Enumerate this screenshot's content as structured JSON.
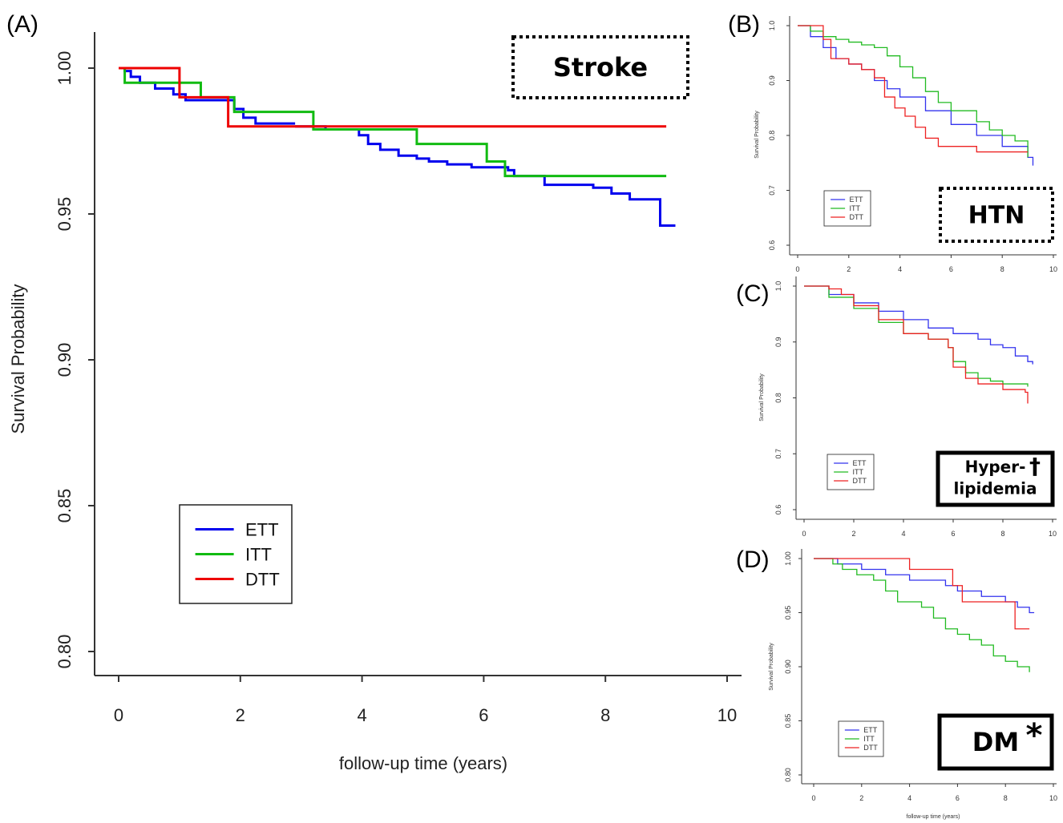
{
  "chart_data": [
    {
      "id": "A",
      "type": "line",
      "panel_label": "(A)",
      "tag": "Stroke",
      "tag_style": "dotted",
      "tag_marker": "",
      "xlabel": "follow-up time (years)",
      "ylabel": "Survival Probability",
      "xlim": [
        0,
        10
      ],
      "ylim": [
        0.8,
        1.0
      ],
      "xticks": [
        "0",
        "2",
        "4",
        "6",
        "8",
        "10"
      ],
      "yticks": [
        "0.80",
        "0.85",
        "0.90",
        "0.95",
        "1.00"
      ],
      "legend_position": "bottom-left",
      "series": [
        {
          "name": "ETT",
          "color": "#0000ee",
          "x": [
            0,
            0.1,
            0.2,
            0.35,
            0.6,
            0.9,
            1.1,
            1.5,
            1.9,
            2.05,
            2.25,
            2.9
          ],
          "y": [
            1.0,
            0.999,
            0.997,
            0.995,
            0.993,
            0.991,
            0.989,
            0.989,
            0.986,
            0.983,
            0.981,
            0.981
          ]
        },
        {
          "name": "ETT",
          "color": "#0000ee",
          "x": [
            2.9,
            3.4,
            3.95,
            4.1,
            4.3,
            4.6,
            4.9,
            5.1,
            5.4,
            5.8,
            6.4,
            6.5,
            7.0,
            7.8,
            8.1,
            8.4,
            8.9,
            9.15
          ],
          "y": [
            0.98,
            0.979,
            0.977,
            0.974,
            0.972,
            0.97,
            0.969,
            0.968,
            0.967,
            0.966,
            0.965,
            0.963,
            0.96,
            0.959,
            0.957,
            0.955,
            0.946,
            0.946
          ]
        },
        {
          "name": "ITT",
          "color": "#11bb11",
          "x": [
            0,
            0.1,
            0.7,
            1.35,
            1.8,
            1.9,
            3.2,
            4.9,
            6.05,
            6.35,
            9.0
          ],
          "y": [
            1.0,
            0.995,
            0.995,
            0.99,
            0.99,
            0.985,
            0.979,
            0.974,
            0.968,
            0.963,
            0.963
          ]
        },
        {
          "name": "DTT",
          "color": "#ee0000",
          "x": [
            0,
            1.0,
            1.8,
            9.0
          ],
          "y": [
            1.0,
            0.99,
            0.98,
            0.98
          ]
        }
      ]
    },
    {
      "id": "B",
      "type": "line",
      "panel_label": "(B)",
      "tag": "HTN",
      "tag_style": "dotted",
      "tag_marker": "",
      "xlabel": "",
      "ylabel": "Survival Probability",
      "xlim": [
        0,
        10
      ],
      "ylim": [
        0.6,
        1.0
      ],
      "xticks": [
        "0",
        "2",
        "4",
        "6",
        "8",
        "10"
      ],
      "yticks": [
        "0.6",
        "0.7",
        "0.8",
        "0.9",
        "1.0"
      ],
      "legend_position": "bottom-left",
      "series": [
        {
          "name": "ETT",
          "color": "#3333ee",
          "x": [
            0,
            0.5,
            1.0,
            1.5,
            2.0,
            2.5,
            3.0,
            3.5,
            4.0,
            5.0,
            6.0,
            7.0,
            8.0,
            9.0,
            9.2
          ],
          "y": [
            1.0,
            0.98,
            0.96,
            0.94,
            0.93,
            0.92,
            0.9,
            0.885,
            0.87,
            0.845,
            0.82,
            0.8,
            0.78,
            0.76,
            0.745
          ]
        },
        {
          "name": "ITT",
          "color": "#22bb22",
          "x": [
            0,
            0.5,
            1.0,
            1.5,
            2.0,
            2.5,
            3.0,
            3.5,
            4.0,
            4.5,
            5.0,
            5.5,
            6.0,
            6.5,
            7.0,
            7.5,
            8.0,
            8.5,
            9.0
          ],
          "y": [
            1.0,
            0.99,
            0.98,
            0.975,
            0.97,
            0.965,
            0.96,
            0.945,
            0.925,
            0.905,
            0.88,
            0.86,
            0.845,
            0.845,
            0.825,
            0.81,
            0.8,
            0.79,
            0.76
          ]
        },
        {
          "name": "DTT",
          "color": "#ee2222",
          "x": [
            0,
            0.8,
            1.0,
            1.3,
            2.0,
            2.5,
            3.0,
            3.4,
            3.8,
            4.2,
            4.6,
            5.0,
            5.5,
            6.0,
            7.0,
            8.0,
            9.0
          ],
          "y": [
            1.0,
            1.0,
            0.975,
            0.94,
            0.93,
            0.92,
            0.905,
            0.87,
            0.85,
            0.835,
            0.815,
            0.795,
            0.78,
            0.78,
            0.77,
            0.77,
            0.77
          ]
        }
      ]
    },
    {
      "id": "C",
      "type": "line",
      "panel_label": "(C)",
      "tag": "Hyper-lipidemia",
      "tag_lines": [
        "Hyper-",
        "lipidemia"
      ],
      "tag_style": "solid",
      "tag_marker": "†",
      "xlabel": "",
      "ylabel": "Survival Probability",
      "xlim": [
        0,
        10
      ],
      "ylim": [
        0.6,
        1.0
      ],
      "xticks": [
        "0",
        "2",
        "4",
        "6",
        "8",
        "10"
      ],
      "yticks": [
        "0.6",
        "0.7",
        "0.8",
        "0.9",
        "1.0"
      ],
      "legend_position": "bottom-left",
      "series": [
        {
          "name": "ETT",
          "color": "#3333ee",
          "x": [
            0,
            1.0,
            2.0,
            3.0,
            4.0,
            5.0,
            6.0,
            7.0,
            7.5,
            8.0,
            8.5,
            9.0,
            9.2
          ],
          "y": [
            1.0,
            0.985,
            0.97,
            0.955,
            0.94,
            0.925,
            0.915,
            0.905,
            0.895,
            0.89,
            0.875,
            0.865,
            0.86
          ]
        },
        {
          "name": "ITT",
          "color": "#22bb22",
          "x": [
            0,
            1.0,
            2.0,
            3.0,
            4.0,
            5.0,
            5.8,
            6.0,
            6.5,
            7.0,
            7.5,
            8.0,
            9.0
          ],
          "y": [
            1.0,
            0.98,
            0.96,
            0.935,
            0.915,
            0.905,
            0.89,
            0.865,
            0.845,
            0.835,
            0.83,
            0.825,
            0.82
          ]
        },
        {
          "name": "DTT",
          "color": "#ee2222",
          "x": [
            0,
            0.5,
            1.0,
            1.5,
            2.0,
            3.0,
            4.0,
            5.0,
            5.8,
            6.0,
            6.5,
            7.0,
            8.0,
            8.9,
            9.0
          ],
          "y": [
            1.0,
            1.0,
            0.995,
            0.985,
            0.965,
            0.94,
            0.915,
            0.905,
            0.89,
            0.855,
            0.835,
            0.825,
            0.815,
            0.81,
            0.79
          ]
        }
      ]
    },
    {
      "id": "D",
      "type": "line",
      "panel_label": "(D)",
      "tag": "DM",
      "tag_style": "solid",
      "tag_marker": "*",
      "xlabel": "follow-up time (years)",
      "ylabel": "Survival Probability",
      "xlim": [
        0,
        10
      ],
      "ylim": [
        0.8,
        1.0
      ],
      "xticks": [
        "0",
        "2",
        "4",
        "6",
        "8",
        "10"
      ],
      "yticks": [
        "0.80",
        "0.85",
        "0.90",
        "0.95",
        "1.00"
      ],
      "legend_position": "bottom-left",
      "series": [
        {
          "name": "ETT",
          "color": "#3333ee",
          "x": [
            0,
            1.0,
            2.0,
            3.0,
            4.0,
            5.0,
            5.5,
            6.0,
            7.0,
            8.0,
            8.5,
            9.0,
            9.2
          ],
          "y": [
            1.0,
            0.995,
            0.99,
            0.985,
            0.98,
            0.98,
            0.975,
            0.97,
            0.965,
            0.96,
            0.955,
            0.95,
            0.95
          ]
        },
        {
          "name": "ITT",
          "color": "#22bb22",
          "x": [
            0,
            0.8,
            1.2,
            1.8,
            2.5,
            3.0,
            3.5,
            4.0,
            4.5,
            5.0,
            5.5,
            6.0,
            6.5,
            7.0,
            7.5,
            8.0,
            8.5,
            9.0
          ],
          "y": [
            1.0,
            0.995,
            0.99,
            0.985,
            0.98,
            0.97,
            0.96,
            0.96,
            0.955,
            0.945,
            0.935,
            0.93,
            0.925,
            0.92,
            0.91,
            0.905,
            0.9,
            0.895
          ]
        },
        {
          "name": "DTT",
          "color": "#ee2222",
          "x": [
            0,
            3.9,
            4.0,
            5.6,
            5.8,
            6.2,
            8.0,
            8.4,
            9.0
          ],
          "y": [
            1.0,
            1.0,
            0.99,
            0.99,
            0.975,
            0.96,
            0.96,
            0.935,
            0.935
          ]
        }
      ]
    }
  ]
}
